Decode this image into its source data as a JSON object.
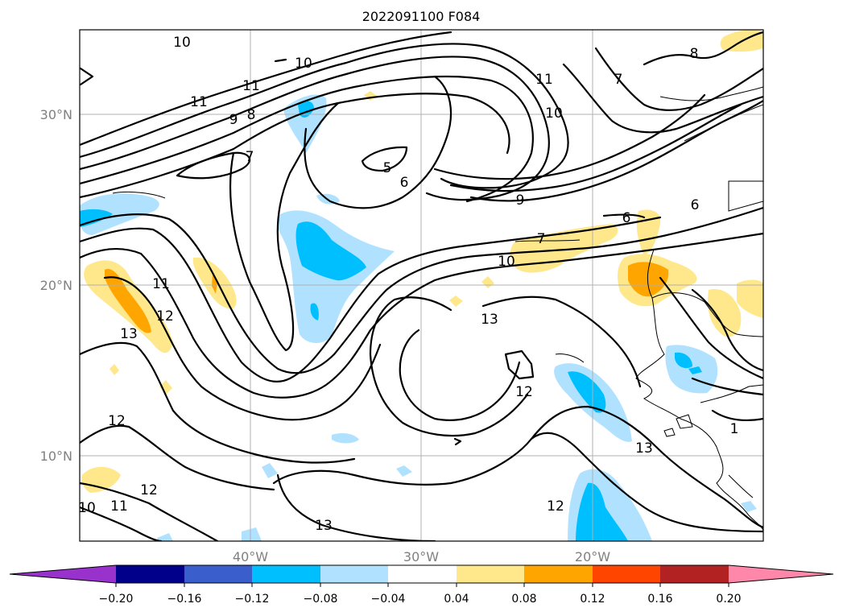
{
  "title": "2022091100 F084",
  "map": {
    "lat_labels": [
      "30°N",
      "20°N",
      "10°N"
    ],
    "lon_labels": [
      "40°W",
      "30°W",
      "20°W"
    ],
    "contour_labels": [
      "10",
      "10",
      "11",
      "11",
      "8",
      "9",
      "7",
      "5",
      "6",
      "9",
      "6",
      "6",
      "7",
      "10",
      "11",
      "10",
      "7",
      "13",
      "12",
      "11",
      "12",
      "13",
      "12",
      "12",
      "11",
      "10",
      "13",
      "12",
      "8",
      "1"
    ]
  },
  "colorbar": {
    "ticks": [
      "−0.20",
      "−0.16",
      "−0.12",
      "−0.08",
      "−0.04",
      "0.04",
      "0.08",
      "0.12",
      "0.16",
      "0.20"
    ],
    "colors": [
      "#9932cc",
      "#00008b",
      "#3a5fcd",
      "#00bfff",
      "#b0e2ff",
      "#ffffff",
      "#ffe78c",
      "#ffa500",
      "#ff4500",
      "#b22222",
      "#ff88aa"
    ]
  }
}
